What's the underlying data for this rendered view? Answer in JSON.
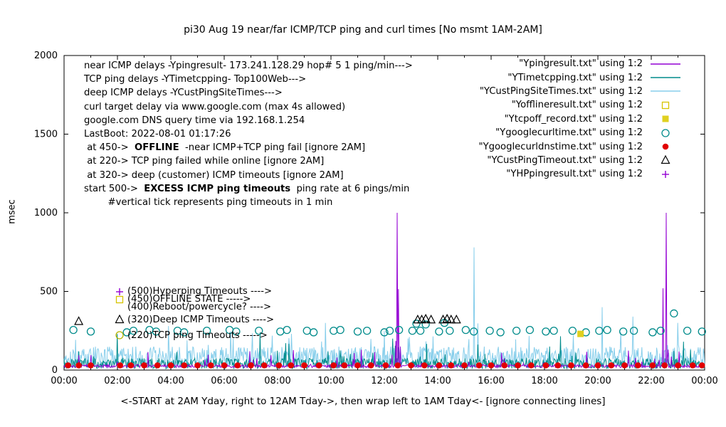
{
  "chart_data": {
    "type": "line",
    "title": "pi30 Aug 19  near/far ICMP/TCP ping and curl times [No msmt 1AM-2AM]",
    "ylabel": "msec",
    "xlabel": "<-START at 2AM Yday, right to 12AM Tday->, then wrap left to 1AM Tday<- [ignore connecting lines]",
    "ylim": [
      0,
      2000
    ],
    "yticks": [
      0,
      500,
      1000,
      1500,
      2000
    ],
    "xticks": [
      "00:00",
      "02:00",
      "04:00",
      "06:00",
      "08:00",
      "10:00",
      "12:00",
      "14:00",
      "16:00",
      "18:00",
      "20:00",
      "22:00",
      "00:00"
    ],
    "hours_span": 24,
    "grid": false,
    "legend_position": "top-right-inside",
    "line_series": [
      {
        "name": "YCustPingSiteTimes.txt",
        "desc": "deep ICMP delays",
        "color": "#87ceeb",
        "base": [
          12,
          150
        ],
        "spike_chance": 0.05,
        "spike_extra": 170,
        "spikes": [
          [
            3.9,
            280
          ],
          [
            9.8,
            300
          ],
          [
            15.35,
            780
          ],
          [
            20.15,
            400
          ],
          [
            21.3,
            340
          ],
          [
            23.0,
            300
          ]
        ]
      },
      {
        "name": "YTimetcpping.txt",
        "desc": "TCP ping delays Top100Web",
        "color": "#008b8b",
        "base": [
          8,
          75
        ],
        "spike_chance": 0.04,
        "spike_extra": 120,
        "spikes": [
          [
            2.0,
            230
          ],
          [
            7.35,
            240
          ],
          [
            12.3,
            200
          ],
          [
            18.6,
            215
          ],
          [
            23.2,
            180
          ]
        ]
      },
      {
        "name": "Ypingresult.txt",
        "desc": "near ICMP delays hop# 5",
        "color": "#9400d3",
        "base": [
          16,
          34
        ],
        "spike_chance": 0.05,
        "spike_extra": 100,
        "spikes": [
          [
            12.42,
            185
          ],
          [
            12.47,
            1000
          ],
          [
            12.52,
            515
          ],
          [
            12.6,
            150
          ],
          [
            22.45,
            520
          ],
          [
            22.55,
            1000
          ],
          [
            22.62,
            130
          ]
        ]
      }
    ],
    "point_series": [
      {
        "name": "Ygooglecurltime.txt",
        "shape": "circle-open",
        "color": "#008b8b",
        "points": [
          [
            0.35,
            255
          ],
          [
            1.0,
            245
          ],
          [
            2.35,
            240
          ],
          [
            2.6,
            250
          ],
          [
            3.2,
            255
          ],
          [
            3.45,
            245
          ],
          [
            4.25,
            250
          ],
          [
            4.5,
            240
          ],
          [
            5.35,
            250
          ],
          [
            6.2,
            255
          ],
          [
            6.45,
            245
          ],
          [
            7.3,
            250
          ],
          [
            8.1,
            245
          ],
          [
            8.35,
            255
          ],
          [
            9.1,
            250
          ],
          [
            9.35,
            240
          ],
          [
            10.1,
            250
          ],
          [
            10.35,
            255
          ],
          [
            11.0,
            245
          ],
          [
            11.35,
            250
          ],
          [
            12.0,
            240
          ],
          [
            12.2,
            250
          ],
          [
            12.55,
            255
          ],
          [
            13.05,
            250
          ],
          [
            13.2,
            295
          ],
          [
            13.35,
            250
          ],
          [
            13.55,
            290
          ],
          [
            14.05,
            245
          ],
          [
            14.25,
            300
          ],
          [
            14.45,
            250
          ],
          [
            15.05,
            255
          ],
          [
            15.35,
            245
          ],
          [
            15.95,
            250
          ],
          [
            16.35,
            240
          ],
          [
            16.95,
            250
          ],
          [
            17.45,
            255
          ],
          [
            18.05,
            245
          ],
          [
            18.35,
            250
          ],
          [
            19.05,
            250
          ],
          [
            19.55,
            240
          ],
          [
            20.05,
            250
          ],
          [
            20.35,
            255
          ],
          [
            20.95,
            245
          ],
          [
            21.35,
            250
          ],
          [
            22.05,
            240
          ],
          [
            22.35,
            250
          ],
          [
            22.85,
            360
          ],
          [
            23.35,
            250
          ],
          [
            23.9,
            245
          ]
        ]
      },
      {
        "name": "Ygooglecurldnstime.txt",
        "shape": "circle-fill",
        "color": "#e10000",
        "points": [
          [
            0.15,
            30
          ],
          [
            0.55,
            30
          ],
          [
            1.0,
            30
          ],
          [
            2.1,
            30
          ],
          [
            2.5,
            30
          ],
          [
            3.0,
            30
          ],
          [
            3.5,
            30
          ],
          [
            4.0,
            30
          ],
          [
            4.5,
            30
          ],
          [
            5.0,
            30
          ],
          [
            5.5,
            30
          ],
          [
            6.0,
            30
          ],
          [
            6.5,
            30
          ],
          [
            7.0,
            30
          ],
          [
            7.5,
            30
          ],
          [
            8.05,
            30
          ],
          [
            8.5,
            30
          ],
          [
            9.0,
            30
          ],
          [
            9.55,
            30
          ],
          [
            10.1,
            30
          ],
          [
            10.5,
            30
          ],
          [
            11.0,
            30
          ],
          [
            11.5,
            30
          ],
          [
            12.05,
            30
          ],
          [
            12.5,
            30
          ],
          [
            13.0,
            30
          ],
          [
            13.5,
            30
          ],
          [
            14.05,
            30
          ],
          [
            14.5,
            30
          ],
          [
            15.0,
            30
          ],
          [
            15.55,
            30
          ],
          [
            16.0,
            30
          ],
          [
            16.5,
            30
          ],
          [
            17.0,
            30
          ],
          [
            17.5,
            30
          ],
          [
            18.05,
            30
          ],
          [
            18.5,
            30
          ],
          [
            19.0,
            30
          ],
          [
            19.55,
            30
          ],
          [
            20.0,
            30
          ],
          [
            20.5,
            30
          ],
          [
            21.0,
            30
          ],
          [
            21.5,
            30
          ],
          [
            22.05,
            30
          ],
          [
            22.5,
            30
          ],
          [
            23.0,
            30
          ],
          [
            23.55,
            30
          ],
          [
            23.9,
            30
          ]
        ]
      },
      {
        "name": "YCustPingTimeout.txt",
        "shape": "triangle-open",
        "color": "#000000",
        "points": [
          [
            0.55,
            310
          ],
          [
            13.25,
            320
          ],
          [
            13.4,
            320
          ],
          [
            13.55,
            325
          ],
          [
            13.75,
            320
          ],
          [
            14.2,
            320
          ],
          [
            14.35,
            325
          ],
          [
            14.5,
            320
          ],
          [
            14.7,
            320
          ]
        ]
      },
      {
        "name": "Ytcpoff_record.txt",
        "shape": "square-fill",
        "color": "#e0d020",
        "points": [
          [
            19.35,
            230
          ]
        ]
      },
      {
        "name": "Yofflineresult.txt",
        "shape": "square-open",
        "color": "#d6c400",
        "points": []
      },
      {
        "name": "YHPpingresult.txt",
        "shape": "plus",
        "color": "#9400d3",
        "points": []
      }
    ]
  },
  "legend": [
    {
      "label": "\"Ypingresult.txt\" using 1:2",
      "sample": "line",
      "color": "#9400d3"
    },
    {
      "label": "\"YTimetcpping.txt\" using 1:2",
      "sample": "line",
      "color": "#008b8b"
    },
    {
      "label": "\"YCustPingSiteTimes.txt\" using 1:2",
      "sample": "line",
      "color": "#87ceeb"
    },
    {
      "label": "\"Yofflineresult.txt\" using 1:2",
      "sample": "square-open",
      "color": "#d6c400"
    },
    {
      "label": "\"Ytcpoff_record.txt\" using 1:2",
      "sample": "square-fill",
      "color": "#e0d020"
    },
    {
      "label": "\"Ygooglecurltime.txt\" using 1:2",
      "sample": "circle-open",
      "color": "#008b8b"
    },
    {
      "label": "\"Ygooglecurldnstime.txt\" using 1:2",
      "sample": "circle-fill",
      "color": "#e10000"
    },
    {
      "label": "\"YCustPingTimeout.txt\" using 1:2",
      "sample": "triangle-open",
      "color": "#000000"
    },
    {
      "label": "\"YHPpingresult.txt\" using 1:2",
      "sample": "plus",
      "color": "#9400d3"
    }
  ],
  "annotations": [
    {
      "parts": [
        {
          "t": "near ICMP delays -Ypingresult- 173.241.128.29 hop# 5 1 ping/min--->",
          "b": false
        }
      ]
    },
    {
      "parts": [
        {
          "t": "TCP ping delays -YTimetcpping- Top100Web--->",
          "b": false
        }
      ]
    },
    {
      "parts": [
        {
          "t": "deep ICMP delays -YCustPingSiteTimes--->",
          "b": false
        }
      ]
    },
    {
      "parts": [
        {
          "t": "curl target delay via www.google.com (max 4s allowed)",
          "b": false
        }
      ]
    },
    {
      "parts": [
        {
          "t": "google.com DNS query time via 192.168.1.254",
          "b": false
        }
      ]
    },
    {
      "parts": [
        {
          "t": "LastBoot: 2022-08-01 01:17:26",
          "b": false
        }
      ]
    },
    {
      "parts": [
        {
          "t": " at 450->  ",
          "b": false
        },
        {
          "t": "OFFLINE",
          "b": true
        },
        {
          "t": "  -near ICMP+TCP ping fail [ignore 2AM]",
          "b": false
        }
      ]
    },
    {
      "parts": [
        {
          "t": " at 220-> TCP ping failed while online [ignore 2AM]",
          "b": false
        }
      ]
    },
    {
      "parts": [
        {
          "t": " at 320-> deep (customer) ICMP timeouts [ignore 2AM]",
          "b": false
        }
      ]
    },
    {
      "parts": [
        {
          "t": "start 500->  ",
          "b": false
        },
        {
          "t": "EXCESS ICMP ping timeouts",
          "b": true
        },
        {
          "t": "  ping rate at 6 pings/min",
          "b": false
        }
      ]
    },
    {
      "parts": [
        {
          "t": "        #vertical tick represents ping timeouts in 1 min",
          "b": false
        }
      ]
    }
  ],
  "threshold_annotations": [
    {
      "level": 500,
      "marker": "plus",
      "color": "#9400d3",
      "text": "(500)Hyperping Timeouts ---->"
    },
    {
      "level": 450,
      "marker": "square-open",
      "color": "#d6c400",
      "text": "(450)OFFLINE STATE ----->"
    },
    {
      "level": 400,
      "marker": "none",
      "color": "#000000",
      "text": "(400)Reboot/powercycle? ---->"
    },
    {
      "level": 320,
      "marker": "triangle-open",
      "color": "#000000",
      "text": "(320)Deep ICMP Timeouts ---->"
    },
    {
      "level": 220,
      "marker": "circle-open",
      "color": "#b8b400",
      "text": "(220)TCP ping Timeouts ----->"
    }
  ]
}
